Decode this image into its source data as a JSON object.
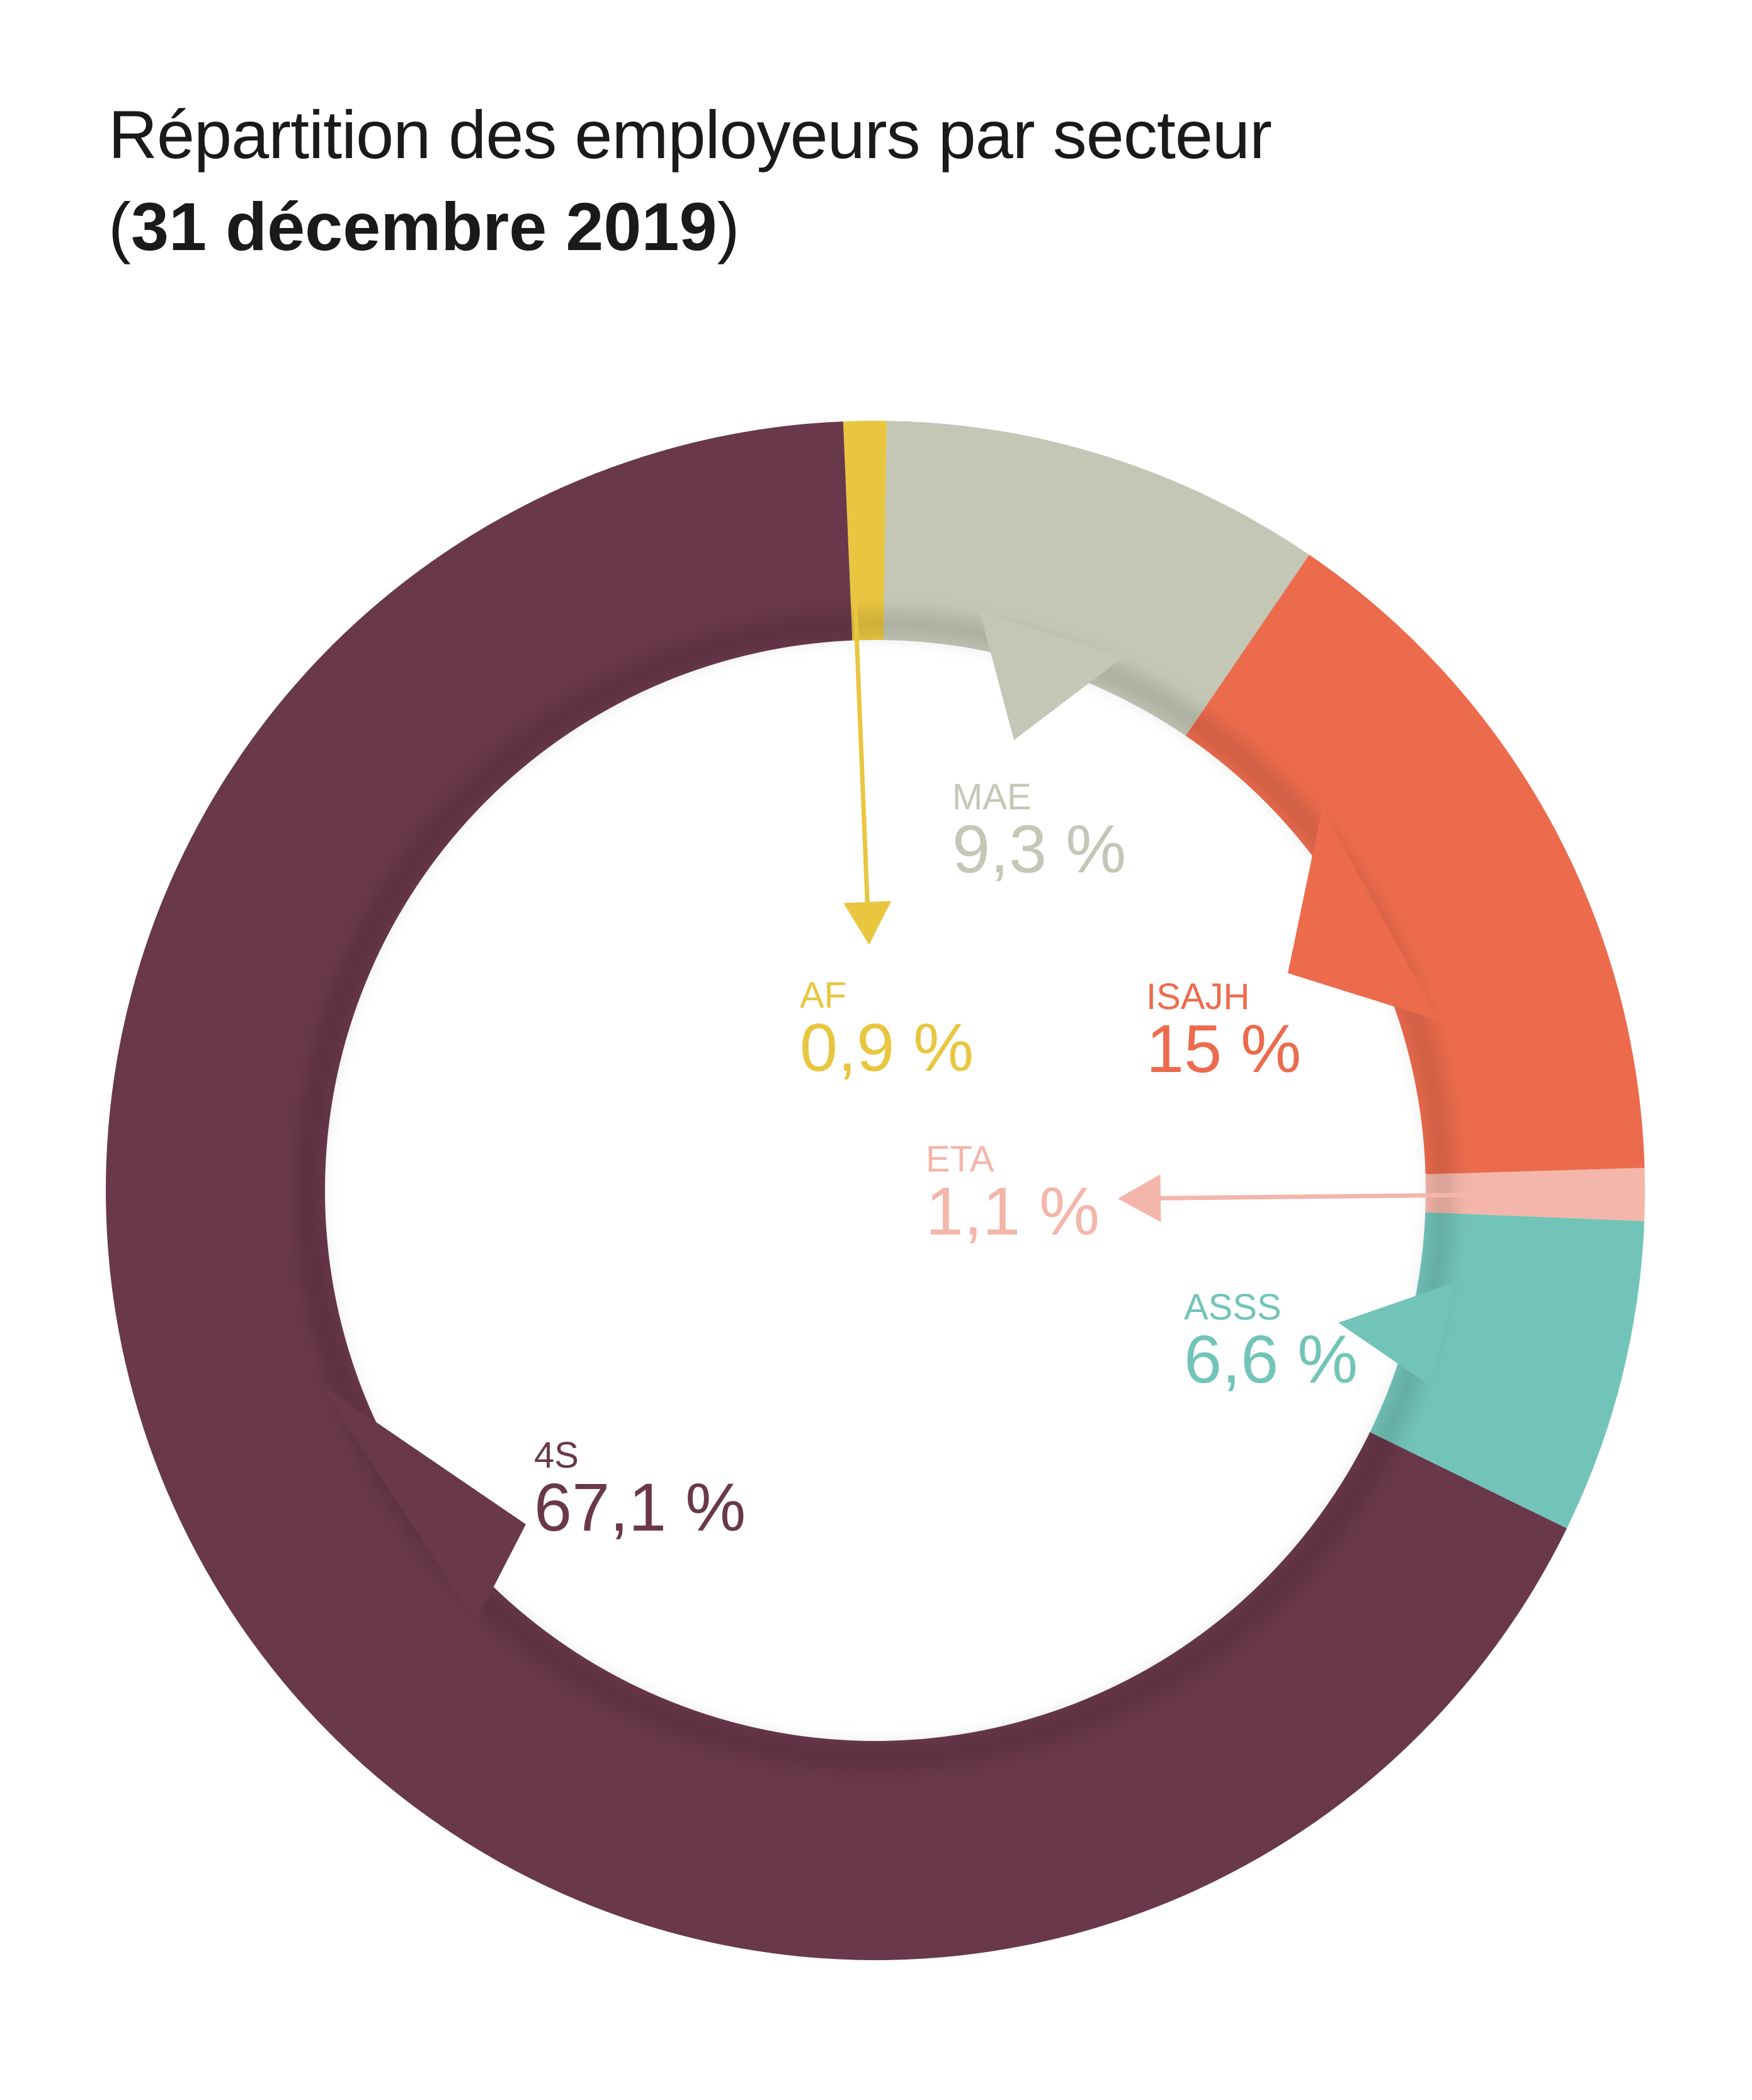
{
  "header": {
    "title": "Répartition des employeurs par secteur",
    "subtitle_open": "(",
    "subtitle_bold": "31 décembre 2019",
    "subtitle_close": ")"
  },
  "chart_data": {
    "type": "pie",
    "title": "Répartition des employeurs par secteur",
    "subtitle": "31 décembre 2019",
    "donut": true,
    "slices": [
      {
        "label": "AF",
        "value_text": "0,9 %",
        "value": 0.9,
        "color": "#E9C640"
      },
      {
        "label": "MAE",
        "value_text": "9,3 %",
        "value": 9.3,
        "color": "#C4C7B6"
      },
      {
        "label": "ISAJH",
        "value_text": "15 %",
        "value": 15,
        "color": "#EC6B4D"
      },
      {
        "label": "ETA",
        "value_text": "1,1 %",
        "value": 1.1,
        "color": "#F4B6AA"
      },
      {
        "label": "ASSS",
        "value_text": "6,6 %",
        "value": 6.6,
        "color": "#73C4B8"
      },
      {
        "label": "4S",
        "value_text": "67,1 %",
        "value": 67.1,
        "color": "#69384B"
      }
    ]
  }
}
